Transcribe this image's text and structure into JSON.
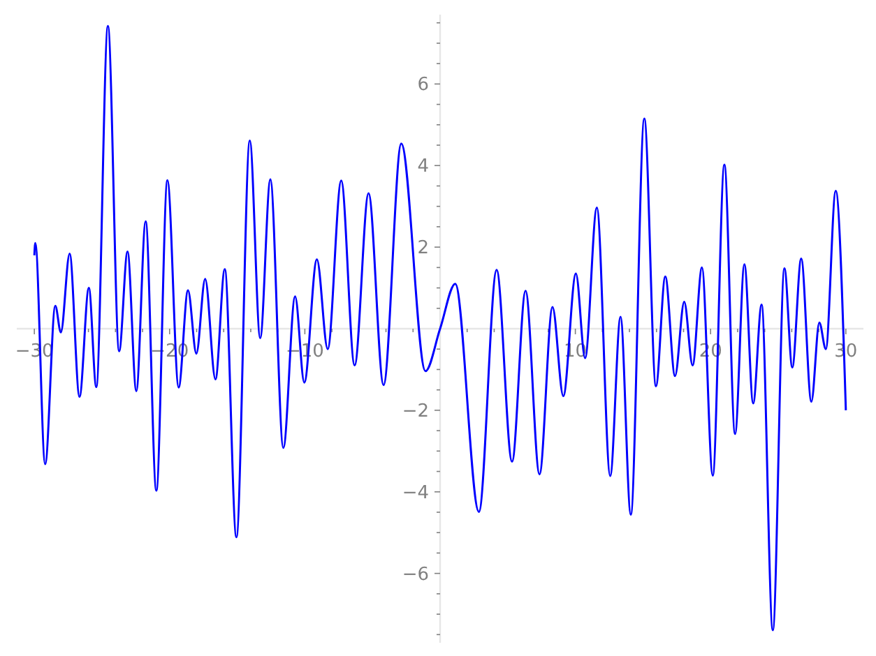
{
  "chart_data": {
    "type": "line",
    "line_style": "solid",
    "marker": "none",
    "grid": false,
    "xlim": [
      -31.3,
      31.3
    ],
    "ylim": [
      -7.7,
      7.7
    ],
    "xticks": [
      {
        "value": -30,
        "label": "−30"
      },
      {
        "value": -28,
        "label": null
      },
      {
        "value": -26,
        "label": null
      },
      {
        "value": -24,
        "label": null
      },
      {
        "value": -22,
        "label": null
      },
      {
        "value": -20,
        "label": "−20"
      },
      {
        "value": -18,
        "label": null
      },
      {
        "value": -16,
        "label": null
      },
      {
        "value": -14,
        "label": null
      },
      {
        "value": -12,
        "label": null
      },
      {
        "value": -10,
        "label": "−10"
      },
      {
        "value": -8,
        "label": null
      },
      {
        "value": -6,
        "label": null
      },
      {
        "value": -4,
        "label": null
      },
      {
        "value": -2,
        "label": null
      },
      {
        "value": 2,
        "label": null
      },
      {
        "value": 4,
        "label": null
      },
      {
        "value": 6,
        "label": null
      },
      {
        "value": 8,
        "label": null
      },
      {
        "value": 10,
        "label": "10"
      },
      {
        "value": 12,
        "label": null
      },
      {
        "value": 14,
        "label": null
      },
      {
        "value": 16,
        "label": null
      },
      {
        "value": 18,
        "label": null
      },
      {
        "value": 20,
        "label": "20"
      },
      {
        "value": 22,
        "label": null
      },
      {
        "value": 24,
        "label": null
      },
      {
        "value": 26,
        "label": null
      },
      {
        "value": 28,
        "label": null
      },
      {
        "value": 30,
        "label": "30"
      }
    ],
    "yticks": [
      {
        "value": -7.5,
        "label": null
      },
      {
        "value": -7,
        "label": null
      },
      {
        "value": -6.5,
        "label": null
      },
      {
        "value": -6,
        "label": "−6"
      },
      {
        "value": -5.5,
        "label": null
      },
      {
        "value": -5,
        "label": null
      },
      {
        "value": -4.5,
        "label": null
      },
      {
        "value": -4,
        "label": "−4"
      },
      {
        "value": -3.5,
        "label": null
      },
      {
        "value": -3,
        "label": null
      },
      {
        "value": -2.5,
        "label": null
      },
      {
        "value": -2,
        "label": "−2"
      },
      {
        "value": -1.5,
        "label": null
      },
      {
        "value": -1,
        "label": null
      },
      {
        "value": -0.5,
        "label": null
      },
      {
        "value": 0.5,
        "label": null
      },
      {
        "value": 1,
        "label": null
      },
      {
        "value": 1.5,
        "label": null
      },
      {
        "value": 2,
        "label": "2"
      },
      {
        "value": 2.5,
        "label": null
      },
      {
        "value": 3,
        "label": null
      },
      {
        "value": 3.5,
        "label": null
      },
      {
        "value": 4,
        "label": "4"
      },
      {
        "value": 4.5,
        "label": null
      },
      {
        "value": 5,
        "label": null
      },
      {
        "value": 5.5,
        "label": null
      },
      {
        "value": 6,
        "label": "6"
      },
      {
        "value": 6.5,
        "label": null
      },
      {
        "value": 7,
        "label": null
      },
      {
        "value": 7.5,
        "label": null
      }
    ],
    "series": [
      {
        "color": "#0000ff",
        "x": [
          -30,
          -29.93,
          -29.2,
          -28.45,
          -28.04,
          -27.39,
          -26.66,
          -25.97,
          -25.42,
          -24.56,
          -23.73,
          -23.11,
          -22.46,
          -21.77,
          -20.98,
          -20.16,
          -19.33,
          -18.64,
          -18.02,
          -17.37,
          -16.61,
          -15.92,
          -15.06,
          -14.07,
          -13.3,
          -12.55,
          -11.59,
          -10.72,
          -10.04,
          -9.11,
          -8.31,
          -7.31,
          -6.32,
          -5.29,
          -4.18,
          -2.87,
          -1.08,
          0,
          1.12,
          2.87,
          4.18,
          5.32,
          6.32,
          7.35,
          8.31,
          9.11,
          10.04,
          10.72,
          11.59,
          12.58,
          13.34,
          14.1,
          15.1,
          15.96,
          16.65,
          17.37,
          18.05,
          18.67,
          19.36,
          20.16,
          21.02,
          21.81,
          22.5,
          23.15,
          23.77,
          24.6,
          25.46,
          26.04,
          26.7,
          27.45,
          28.04,
          28.52,
          29.25,
          30
        ],
        "values": [
          1.8,
          2.1,
          -3.32,
          0.56,
          -0.09,
          1.84,
          -1.67,
          1.0,
          -1.43,
          7.42,
          -0.55,
          1.89,
          -1.53,
          2.63,
          -3.97,
          3.64,
          -1.44,
          0.94,
          -0.61,
          1.22,
          -1.24,
          1.46,
          -5.11,
          4.61,
          -0.23,
          3.66,
          -2.92,
          0.79,
          -1.32,
          1.7,
          -0.5,
          3.63,
          -0.9,
          3.32,
          -1.38,
          4.54,
          -1.04,
          0,
          1.1,
          -4.49,
          1.44,
          -3.26,
          0.93,
          -3.57,
          0.53,
          -1.65,
          1.35,
          -0.72,
          2.97,
          -3.61,
          0.29,
          -4.56,
          5.15,
          -1.41,
          1.28,
          -1.16,
          0.66,
          -0.9,
          1.5,
          -3.6,
          4.02,
          -2.58,
          1.58,
          -1.83,
          0.59,
          -7.39,
          1.48,
          -0.95,
          1.72,
          -1.79,
          0.15,
          -0.5,
          3.38,
          -2.0
        ]
      }
    ]
  }
}
